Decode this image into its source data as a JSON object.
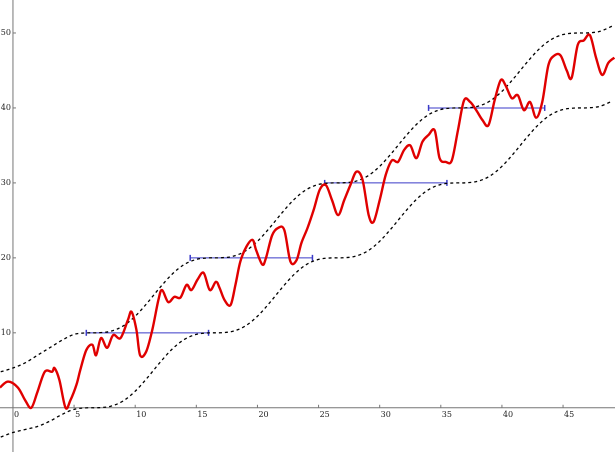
{
  "chart_data": {
    "type": "line",
    "xlim": [
      -1.06,
      49.25
    ],
    "ylim": [
      -5.9,
      54.4
    ],
    "xticks": [
      0,
      5,
      10,
      15,
      20,
      25,
      30,
      35,
      40,
      45
    ],
    "yticks": [
      10,
      20,
      30,
      40,
      50
    ],
    "grid": false,
    "series": [
      {
        "color": "#e00000",
        "dash": false,
        "x": [
          -1.06,
          -0.4,
          0.4,
          1,
          1.5,
          2,
          2.6,
          3.2,
          3.4,
          3.8,
          4.3,
          4.7,
          5.2,
          5.5,
          6,
          6.5,
          6.8,
          7.2,
          7.7,
          8.2,
          8.8,
          9.4,
          9.7,
          10.1,
          10.4,
          10.9,
          11.4,
          11.9,
          12.2,
          12.7,
          13.2,
          13.7,
          14.2,
          14.6,
          15.1,
          15.6,
          16.1,
          16.6,
          16.9,
          17.3,
          17.8,
          18.2,
          18.6,
          19.1,
          19.6,
          19.9,
          20.4,
          20.7,
          21.2,
          21.7,
          22.2,
          22.7,
          23.2,
          23.6,
          24.1,
          24.6,
          25.1,
          25.6,
          26.1,
          26.6,
          27.1,
          27.6,
          28.1,
          28.6,
          29.1,
          29.5,
          30,
          30.5,
          31,
          31.5,
          32,
          32.5,
          33,
          33.5,
          34,
          34.5,
          34.9,
          35.4,
          35.9,
          36.4,
          36.9,
          37.4,
          37.9,
          38.4,
          38.9,
          39.4,
          39.9,
          40.3,
          40.8,
          41.3,
          41.8,
          42.3,
          42.8,
          43.3,
          43.8,
          44.3,
          44.8,
          45.3,
          45.7,
          46.2,
          46.7,
          47.2,
          47.7,
          48.2,
          48.7,
          49.2
        ],
        "values": [
          2.7,
          3.5,
          2.7,
          1,
          0,
          2.1,
          4.8,
          4.8,
          5.3,
          3.7,
          0,
          1,
          3.1,
          5,
          7.7,
          8.4,
          7,
          9.3,
          8,
          9.7,
          9.3,
          11.7,
          12.8,
          10.4,
          7,
          7.5,
          10.4,
          14.4,
          15.7,
          14.1,
          14.8,
          14.7,
          16.4,
          15.7,
          17.1,
          18,
          15.7,
          16.8,
          16,
          14.4,
          13.7,
          16.4,
          19.5,
          21.5,
          22.4,
          21,
          19.1,
          20,
          23,
          24,
          23.7,
          19.5,
          19.7,
          22,
          24,
          26.4,
          29.1,
          29.7,
          27.7,
          25.7,
          27.7,
          29.7,
          31.5,
          30.4,
          25.7,
          24.8,
          27.7,
          31.1,
          33,
          32.8,
          34.4,
          35,
          33.3,
          35.5,
          36.4,
          37,
          33.3,
          32.8,
          33,
          37,
          41,
          40.8,
          39.7,
          38.4,
          37.7,
          41,
          43.7,
          43,
          41.3,
          41.7,
          39.7,
          40.8,
          38.7,
          40.8,
          45.7,
          47,
          47,
          45,
          44,
          48.4,
          49,
          49.7,
          46.7,
          44.4,
          46,
          46.7
        ]
      },
      {
        "color": "#000000",
        "dash": true,
        "x": [
          -1,
          0,
          1,
          2,
          3,
          4,
          5,
          6,
          7,
          8,
          9,
          10,
          11,
          12,
          13,
          14,
          15,
          16,
          17,
          18,
          19,
          20,
          21,
          22,
          23,
          24,
          25,
          26,
          27,
          28,
          29,
          30,
          31,
          32,
          33,
          34,
          35,
          36,
          37,
          38,
          39,
          40,
          41,
          42,
          43,
          44,
          45,
          46,
          47,
          48,
          49
        ],
        "values": [
          4.8,
          5.3,
          6,
          7,
          8,
          9,
          9.79,
          9.99,
          10.01,
          10.21,
          10.9,
          12.21,
          14.01,
          15.99,
          17.79,
          19.1,
          19.79,
          19.99,
          20.01,
          20.21,
          20.9,
          22.21,
          24.01,
          25.99,
          27.79,
          29.1,
          29.79,
          29.99,
          30.01,
          30.21,
          30.9,
          32.21,
          34.01,
          35.99,
          37.79,
          39.1,
          39.79,
          39.99,
          40.01,
          40.21,
          40.9,
          42.21,
          44.01,
          45.99,
          47.79,
          49.1,
          49.79,
          49.99,
          50.01,
          50.21,
          50.9
        ]
      },
      {
        "color": "#000000",
        "dash": true,
        "x": [
          -1,
          0,
          1,
          2,
          3,
          4,
          5,
          6,
          7,
          8,
          9,
          10,
          11,
          12,
          13,
          14,
          15,
          16,
          17,
          18,
          19,
          20,
          21,
          22,
          23,
          24,
          25,
          26,
          27,
          28,
          29,
          30,
          31,
          32,
          33,
          34,
          35,
          36,
          37,
          38,
          39,
          40,
          41,
          42,
          43,
          44,
          45,
          46,
          47,
          48,
          49
        ],
        "values": [
          -3.9,
          -3.3,
          -2.9,
          -2.5,
          -1.8,
          -0.9,
          -0.21,
          -0.01,
          0.01,
          0.21,
          0.9,
          2.21,
          4.01,
          5.99,
          7.79,
          9.1,
          9.79,
          9.99,
          10.01,
          10.21,
          10.9,
          12.21,
          14.01,
          15.99,
          17.79,
          19.1,
          19.79,
          19.99,
          20.01,
          20.21,
          20.9,
          22.21,
          24.01,
          25.99,
          27.79,
          29.1,
          29.79,
          29.99,
          30.01,
          30.21,
          30.9,
          32.21,
          34.01,
          35.99,
          37.79,
          39.1,
          39.79,
          39.99,
          40.01,
          40.21,
          40.9
        ]
      }
    ],
    "segments_color": "#3a3ac8",
    "segments": [
      {
        "y": 10,
        "x": [
          6,
          16
        ]
      },
      {
        "y": 20,
        "x": [
          14.5,
          24.5
        ]
      },
      {
        "y": 30,
        "x": [
          25.5,
          35.5
        ]
      },
      {
        "y": 40,
        "x": [
          34,
          43.5
        ]
      }
    ]
  }
}
